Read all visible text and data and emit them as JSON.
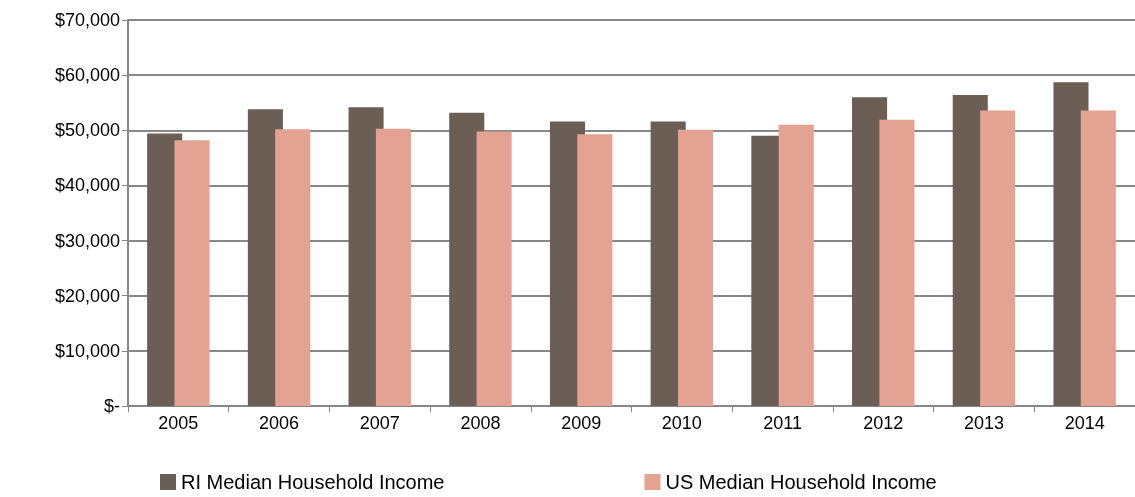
{
  "chart_data": {
    "type": "bar",
    "categories": [
      "2005",
      "2006",
      "2007",
      "2008",
      "2009",
      "2010",
      "2011",
      "2012",
      "2013",
      "2014"
    ],
    "series": [
      {
        "name": "RI Median Household Income",
        "color": "#6b5e55",
        "values": [
          49400,
          53800,
          54200,
          53200,
          51600,
          51600,
          49000,
          56000,
          56400,
          58700
        ]
      },
      {
        "name": "US Median Household Income",
        "color": "#e3a292",
        "values": [
          48200,
          50200,
          50300,
          49800,
          49300,
          50100,
          51000,
          51900,
          53600,
          53600
        ]
      }
    ],
    "ylim": [
      0,
      70000
    ],
    "yticks": [
      {
        "value": 0,
        "label": "$-"
      },
      {
        "value": 10000,
        "label": "$10,000"
      },
      {
        "value": 20000,
        "label": "$20,000"
      },
      {
        "value": 30000,
        "label": "$30,000"
      },
      {
        "value": 40000,
        "label": "$40,000"
      },
      {
        "value": 50000,
        "label": "$50,000"
      },
      {
        "value": 60000,
        "label": "$60,000"
      },
      {
        "value": 70000,
        "label": "$70,000"
      }
    ],
    "grid": "y",
    "legend": "bottom"
  }
}
